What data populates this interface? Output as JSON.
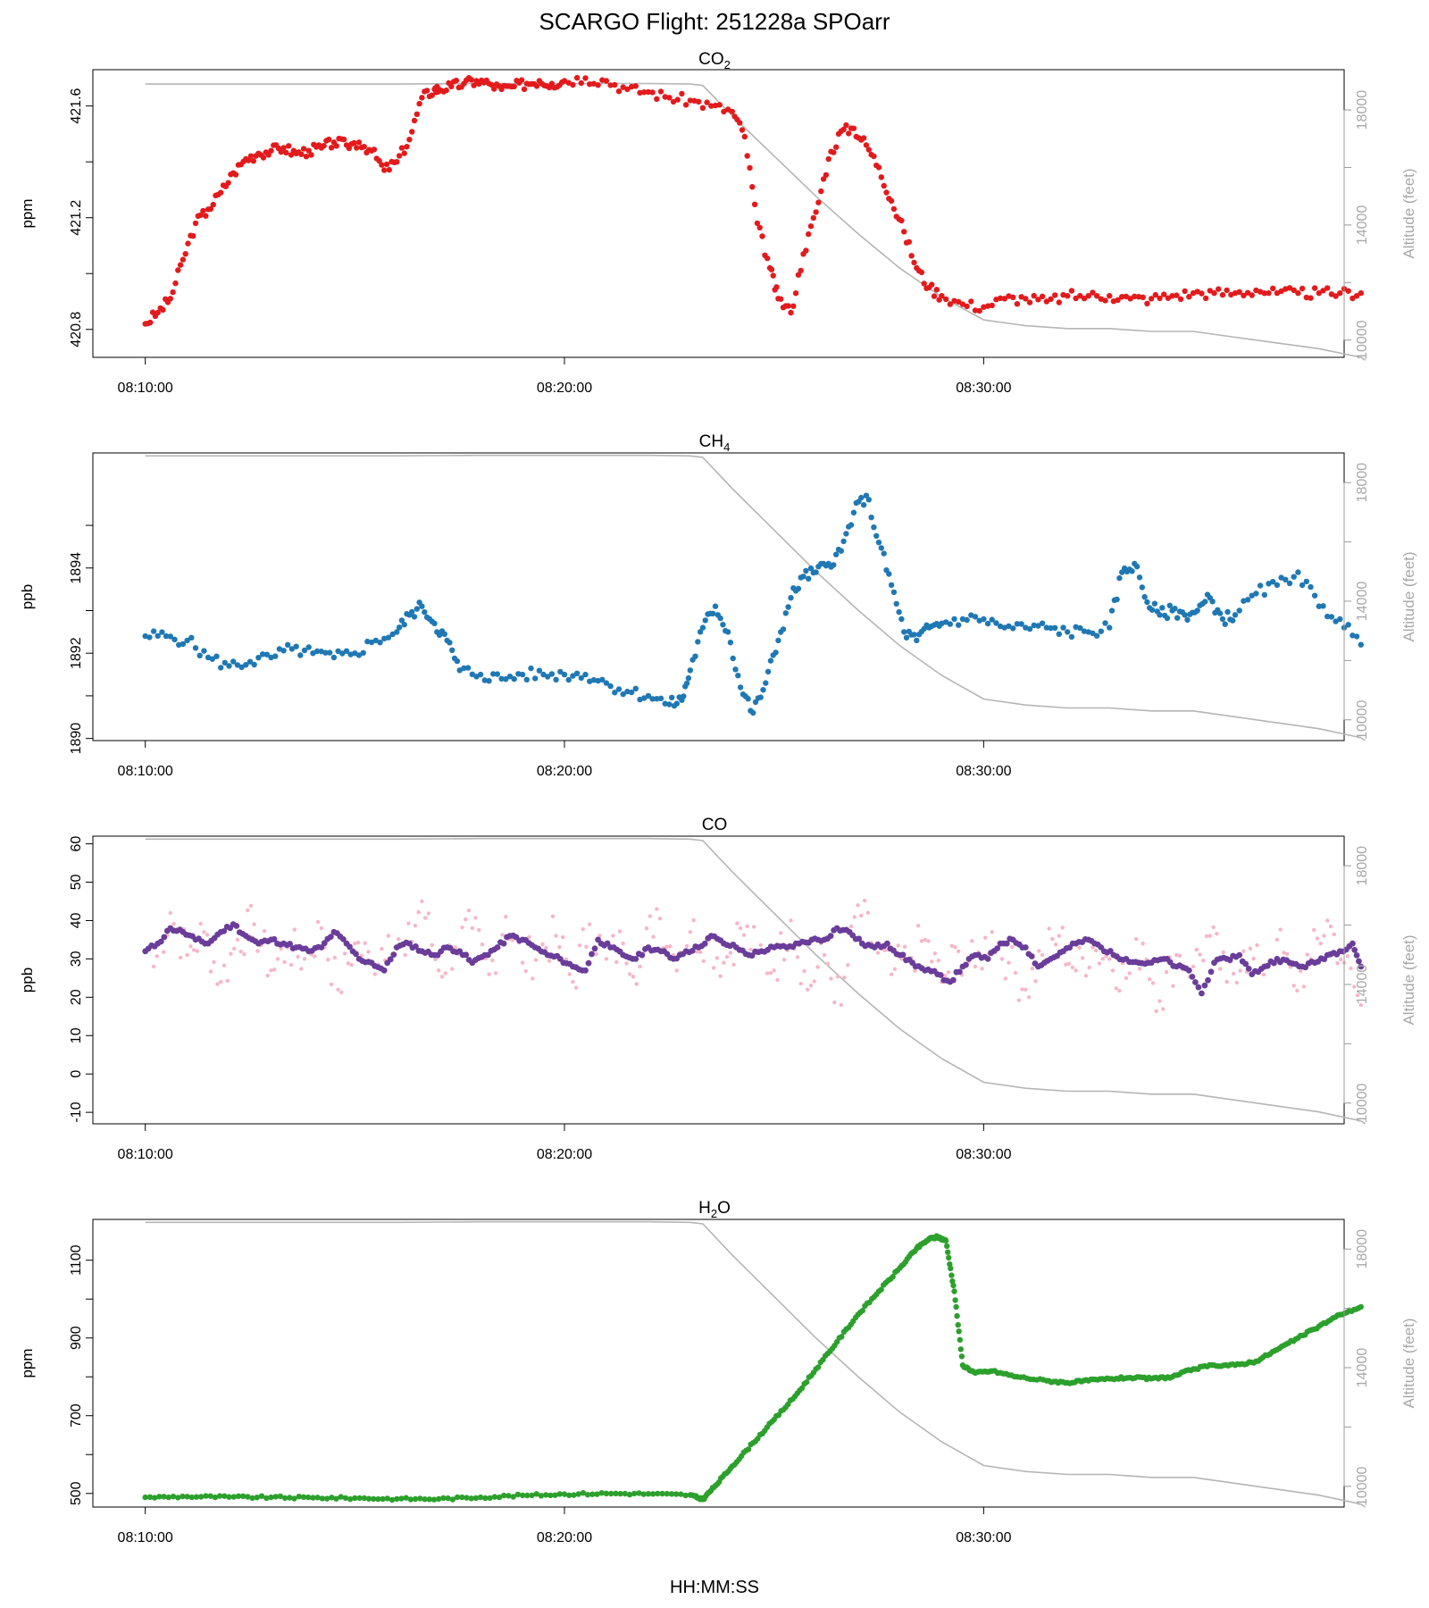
{
  "page": {
    "title": "SCARGO Flight: 251228a  SPOarr",
    "x_axis_label": "HH:MM:SS",
    "right_axis_label": "Altitude (feet)"
  },
  "colors": {
    "co2": "#e31a1c",
    "ch4": "#1f78b4",
    "co_raw": "#f7b6c8",
    "co_smooth": "#6a3d9a",
    "h2o": "#2ca02c",
    "altitude": "#b5b5b5",
    "axis": "#000000",
    "right_axis": "#9a9a9a"
  },
  "time_ticks": [
    "08:10:00",
    "08:20:00",
    "08:30:00"
  ],
  "altitude_profile": {
    "time_min": [
      0,
      1,
      2,
      3,
      4,
      5,
      6,
      7,
      8,
      9,
      10,
      11,
      12,
      13,
      13.3,
      14,
      15,
      16,
      17,
      18,
      19,
      20,
      21,
      22,
      23,
      24,
      25,
      26,
      27,
      28,
      29,
      29.1
    ],
    "feet": [
      18900,
      18900,
      18900,
      18900,
      18900,
      18900,
      18900,
      18910,
      18920,
      18920,
      18920,
      18920,
      18920,
      18900,
      18850,
      17800,
      16400,
      15000,
      13700,
      12500,
      11500,
      10700,
      10500,
      10400,
      10400,
      10300,
      10300,
      10100,
      9900,
      9700,
      9400,
      9300
    ]
  },
  "chart_data": [
    {
      "type": "scatter",
      "id": "co2",
      "title": "CO₂",
      "ylabel": "ppm",
      "ylim": [
        420.7,
        421.73
      ],
      "yticks": [
        420.8,
        421.2,
        421.6
      ],
      "minor_yticks": [
        421.0,
        421.4
      ],
      "y2lim": [
        9400,
        19400
      ],
      "y2ticks": [
        10000,
        14000,
        18000
      ],
      "y2minor": [
        12000,
        16000
      ],
      "xlim": [
        -1.25,
        28.6
      ],
      "x": [
        0,
        0.3,
        0.6,
        0.9,
        1.2,
        1.5,
        1.8,
        2.1,
        2.4,
        2.7,
        3.0,
        3.3,
        3.6,
        3.9,
        4.2,
        4.5,
        4.8,
        5.1,
        5.4,
        5.7,
        6.0,
        6.3,
        6.6,
        6.9,
        7.0,
        7.3,
        7.6,
        7.9,
        8.2,
        8.5,
        8.8,
        9.1,
        9.4,
        9.7,
        10.0,
        10.5,
        11.0,
        11.5,
        12.0,
        12.5,
        13.0,
        13.5,
        14.0,
        14.3,
        14.6,
        14.9,
        15.1,
        15.4,
        15.7,
        16.0,
        16.3,
        16.6,
        16.9,
        17.2,
        17.5,
        17.8,
        18.1,
        18.4,
        18.7,
        19.0,
        19.5,
        20.0,
        20.5,
        21.0,
        21.5,
        22.0,
        22.5,
        23.0,
        23.5,
        24.0,
        24.5,
        25.0,
        25.5,
        26.0,
        26.5,
        27.0,
        27.5,
        28.0,
        28.5,
        29.0
      ],
      "values": [
        420.82,
        420.86,
        420.91,
        421.05,
        421.18,
        421.23,
        421.29,
        421.36,
        421.41,
        421.43,
        421.44,
        421.45,
        421.43,
        421.44,
        421.45,
        421.47,
        421.46,
        421.47,
        421.44,
        421.37,
        421.4,
        421.48,
        421.63,
        421.66,
        421.66,
        421.67,
        421.68,
        421.69,
        421.68,
        421.66,
        421.67,
        421.68,
        421.69,
        421.68,
        421.69,
        421.7,
        421.69,
        421.66,
        421.65,
        421.63,
        421.62,
        421.6,
        421.58,
        421.49,
        421.18,
        421.02,
        420.91,
        420.86,
        421.07,
        421.22,
        421.41,
        421.51,
        421.52,
        421.46,
        421.38,
        421.26,
        421.15,
        421.02,
        420.95,
        420.92,
        420.89,
        420.88,
        420.91,
        420.91,
        420.9,
        420.92,
        420.92,
        420.92,
        420.91,
        420.91,
        420.92,
        420.93,
        420.93,
        420.93,
        420.94,
        420.93,
        420.93,
        420.93,
        420.93,
        420.93
      ]
    },
    {
      "type": "scatter",
      "id": "ch4",
      "title": "CH₄",
      "ylabel": "ppb",
      "ylim": [
        1889.95,
        1896.7
      ],
      "yticks": [
        1890,
        1892,
        1894
      ],
      "minor_yticks": [
        1891,
        1893,
        1895
      ],
      "y2lim": [
        9300,
        19000
      ],
      "y2ticks": [
        10000,
        14000,
        18000
      ],
      "y2minor": [
        12000,
        16000
      ],
      "xlim": [
        -1.25,
        28.6
      ],
      "x": [
        0,
        0.5,
        1.0,
        1.5,
        2.0,
        2.5,
        3.0,
        3.5,
        4.0,
        4.5,
        5.0,
        5.5,
        6.0,
        6.3,
        6.6,
        6.9,
        7.2,
        7.5,
        8.0,
        8.5,
        9.0,
        9.5,
        10.0,
        10.5,
        11.0,
        11.5,
        12.0,
        12.5,
        12.8,
        13.0,
        13.3,
        13.6,
        13.9,
        14.2,
        14.5,
        14.8,
        15.1,
        15.4,
        15.7,
        16.0,
        16.3,
        16.6,
        16.9,
        17.2,
        17.5,
        17.8,
        18.1,
        18.4,
        18.7,
        19.0,
        19.5,
        20.0,
        20.5,
        21.0,
        21.5,
        22.0,
        22.5,
        23.0,
        23.3,
        23.6,
        23.9,
        24.2,
        24.5,
        24.8,
        25.1,
        25.4,
        25.7,
        26.0,
        26.5,
        27.0,
        27.5,
        28.0,
        28.5,
        29.0
      ],
      "values": [
        1892.4,
        1892.4,
        1892.3,
        1891.9,
        1891.7,
        1891.8,
        1891.9,
        1892.1,
        1892.0,
        1891.9,
        1892.0,
        1892.3,
        1892.5,
        1892.9,
        1893.1,
        1892.7,
        1892.3,
        1891.6,
        1891.5,
        1891.4,
        1891.5,
        1891.5,
        1891.5,
        1891.5,
        1891.3,
        1891.1,
        1891.0,
        1890.8,
        1890.9,
        1891.6,
        1892.6,
        1893.1,
        1892.5,
        1891.2,
        1890.6,
        1891.3,
        1892.3,
        1893.3,
        1893.8,
        1893.9,
        1894.1,
        1894.4,
        1895.3,
        1895.7,
        1894.6,
        1893.6,
        1892.5,
        1892.3,
        1892.6,
        1892.7,
        1892.8,
        1892.8,
        1892.6,
        1892.6,
        1892.6,
        1892.5,
        1892.5,
        1892.6,
        1893.9,
        1894.1,
        1893.2,
        1892.9,
        1893.0,
        1892.9,
        1893.0,
        1893.3,
        1892.8,
        1892.9,
        1893.4,
        1893.6,
        1893.9,
        1893.1,
        1892.8,
        1892.2
      ]
    },
    {
      "type": "scatter",
      "id": "co",
      "title": "CO",
      "ylabel": "ppb",
      "ylim": [
        -13,
        62
      ],
      "yticks": [
        -10,
        0,
        10,
        20,
        30,
        40,
        50,
        60
      ],
      "y2lim": [
        9300,
        19000
      ],
      "y2ticks": [
        10000,
        14000,
        18000
      ],
      "y2minor": [
        12000,
        16000
      ],
      "xlim": [
        -1.25,
        28.6
      ],
      "series": [
        {
          "name": "CO raw",
          "x": [
            0.2,
            0.6,
            1.0,
            1.4,
            1.8,
            2.2,
            2.6,
            3.0,
            3.4,
            3.8,
            4.2,
            4.6,
            5.0,
            5.4,
            5.8,
            6.2,
            6.6,
            7.0,
            7.4,
            7.8,
            8.2,
            8.6,
            9.0,
            9.4,
            9.8,
            10.2,
            10.6,
            11.0,
            11.4,
            11.8,
            12.2,
            12.6,
            13.0,
            13.4,
            13.8,
            14.2,
            14.6,
            15.0,
            15.4,
            15.8,
            16.2,
            16.6,
            17.0,
            17.4,
            17.8,
            18.2,
            18.6,
            19.0,
            19.4,
            19.8,
            20.2,
            20.6,
            21.0,
            21.4,
            21.8,
            22.2,
            22.6,
            23.0,
            23.4,
            23.8,
            24.2,
            24.6,
            25.0,
            25.4,
            25.8,
            26.2,
            26.6,
            27.0,
            27.4,
            27.8,
            28.2,
            28.6,
            29.0
          ],
          "values": [
            28,
            42,
            31,
            37,
            24,
            35,
            39,
            27,
            33,
            30,
            38,
            22,
            34,
            29,
            36,
            31,
            45,
            27,
            33,
            38,
            26,
            41,
            29,
            32,
            36,
            24,
            39,
            30,
            34,
            28,
            43,
            31,
            37,
            35,
            29,
            38,
            32,
            27,
            40,
            22,
            31,
            18,
            44,
            33,
            26,
            30,
            35,
            24,
            32,
            28,
            37,
            29,
            22,
            31,
            36,
            27,
            33,
            30,
            25,
            34,
            19,
            31,
            28,
            36,
            24,
            32,
            27,
            35,
            23,
            30,
            40,
            29,
            18
          ]
        },
        {
          "name": "CO smoothed",
          "x": [
            0,
            0.3,
            0.6,
            0.9,
            1.2,
            1.5,
            1.8,
            2.1,
            2.4,
            2.7,
            3.0,
            3.3,
            3.6,
            3.9,
            4.2,
            4.5,
            4.8,
            5.1,
            5.4,
            5.7,
            6.0,
            6.3,
            6.6,
            6.9,
            7.2,
            7.5,
            7.8,
            8.1,
            8.4,
            8.7,
            9.0,
            9.3,
            9.6,
            9.9,
            10.2,
            10.5,
            10.8,
            11.1,
            11.4,
            11.7,
            12.0,
            12.3,
            12.6,
            12.9,
            13.2,
            13.5,
            13.8,
            14.1,
            14.4,
            14.7,
            15.0,
            15.3,
            15.6,
            15.9,
            16.2,
            16.5,
            16.8,
            17.1,
            17.4,
            17.7,
            18.0,
            18.3,
            18.6,
            18.9,
            19.2,
            19.5,
            19.8,
            20.1,
            20.4,
            20.7,
            21.0,
            21.3,
            21.6,
            21.9,
            22.2,
            22.5,
            22.8,
            23.1,
            23.4,
            23.7,
            24.0,
            24.3,
            24.6,
            24.9,
            25.2,
            25.5,
            25.8,
            26.1,
            26.4,
            26.7,
            27.0,
            27.3,
            27.6,
            27.9,
            28.2,
            28.5,
            28.8,
            29.0
          ],
          "values": [
            32,
            34,
            38,
            37,
            35,
            34,
            37,
            39,
            36,
            34,
            35,
            34,
            33,
            32,
            33,
            37,
            34,
            30,
            29,
            27,
            33,
            34,
            32,
            31,
            33,
            32,
            29,
            31,
            33,
            36,
            35,
            33,
            31,
            30,
            28,
            27,
            35,
            33,
            31,
            30,
            33,
            32,
            30,
            32,
            33,
            36,
            34,
            33,
            31,
            32,
            33,
            33,
            34,
            35,
            35,
            38,
            37,
            34,
            33,
            34,
            31,
            29,
            27,
            26,
            24,
            28,
            31,
            30,
            34,
            35,
            33,
            28,
            30,
            32,
            34,
            35,
            33,
            31,
            30,
            29,
            29,
            30,
            28,
            27,
            21,
            29,
            30,
            31,
            26,
            28,
            30,
            29,
            28,
            29,
            31,
            32,
            34,
            28
          ]
        }
      ]
    },
    {
      "type": "scatter",
      "id": "h2o",
      "title": "H₂O",
      "ylabel": "ppm",
      "ylim": [
        465,
        1205
      ],
      "yticks": [
        500,
        700,
        900,
        1100
      ],
      "minor_yticks": [
        600,
        800,
        1000
      ],
      "y2lim": [
        9300,
        19000
      ],
      "y2ticks": [
        10000,
        14000,
        18000
      ],
      "y2minor": [
        12000,
        16000
      ],
      "xlim": [
        -1.25,
        28.6
      ],
      "x": [
        0,
        1,
        2,
        3,
        4,
        5,
        6,
        7,
        8,
        9,
        10,
        11,
        12,
        13,
        13.3,
        13.6,
        14,
        14.5,
        15,
        15.5,
        16,
        16.5,
        17,
        17.5,
        18,
        18.4,
        18.7,
        18.9,
        19.1,
        19.3,
        19.5,
        19.8,
        20.2,
        20.8,
        21.5,
        22.0,
        22.5,
        23.0,
        23.5,
        24.0,
        24.5,
        25.0,
        25.5,
        26.0,
        26.5,
        27.0,
        27.5,
        28.0,
        28.5,
        29.0
      ],
      "values": [
        490,
        492,
        491,
        490,
        489,
        488,
        486,
        486,
        490,
        495,
        498,
        500,
        499,
        496,
        485,
        520,
        570,
        630,
        690,
        750,
        820,
        890,
        960,
        1020,
        1080,
        1130,
        1155,
        1160,
        1150,
        1020,
        830,
        810,
        815,
        800,
        790,
        785,
        790,
        795,
        798,
        795,
        800,
        820,
        830,
        830,
        840,
        870,
        900,
        930,
        960,
        980
      ]
    }
  ]
}
